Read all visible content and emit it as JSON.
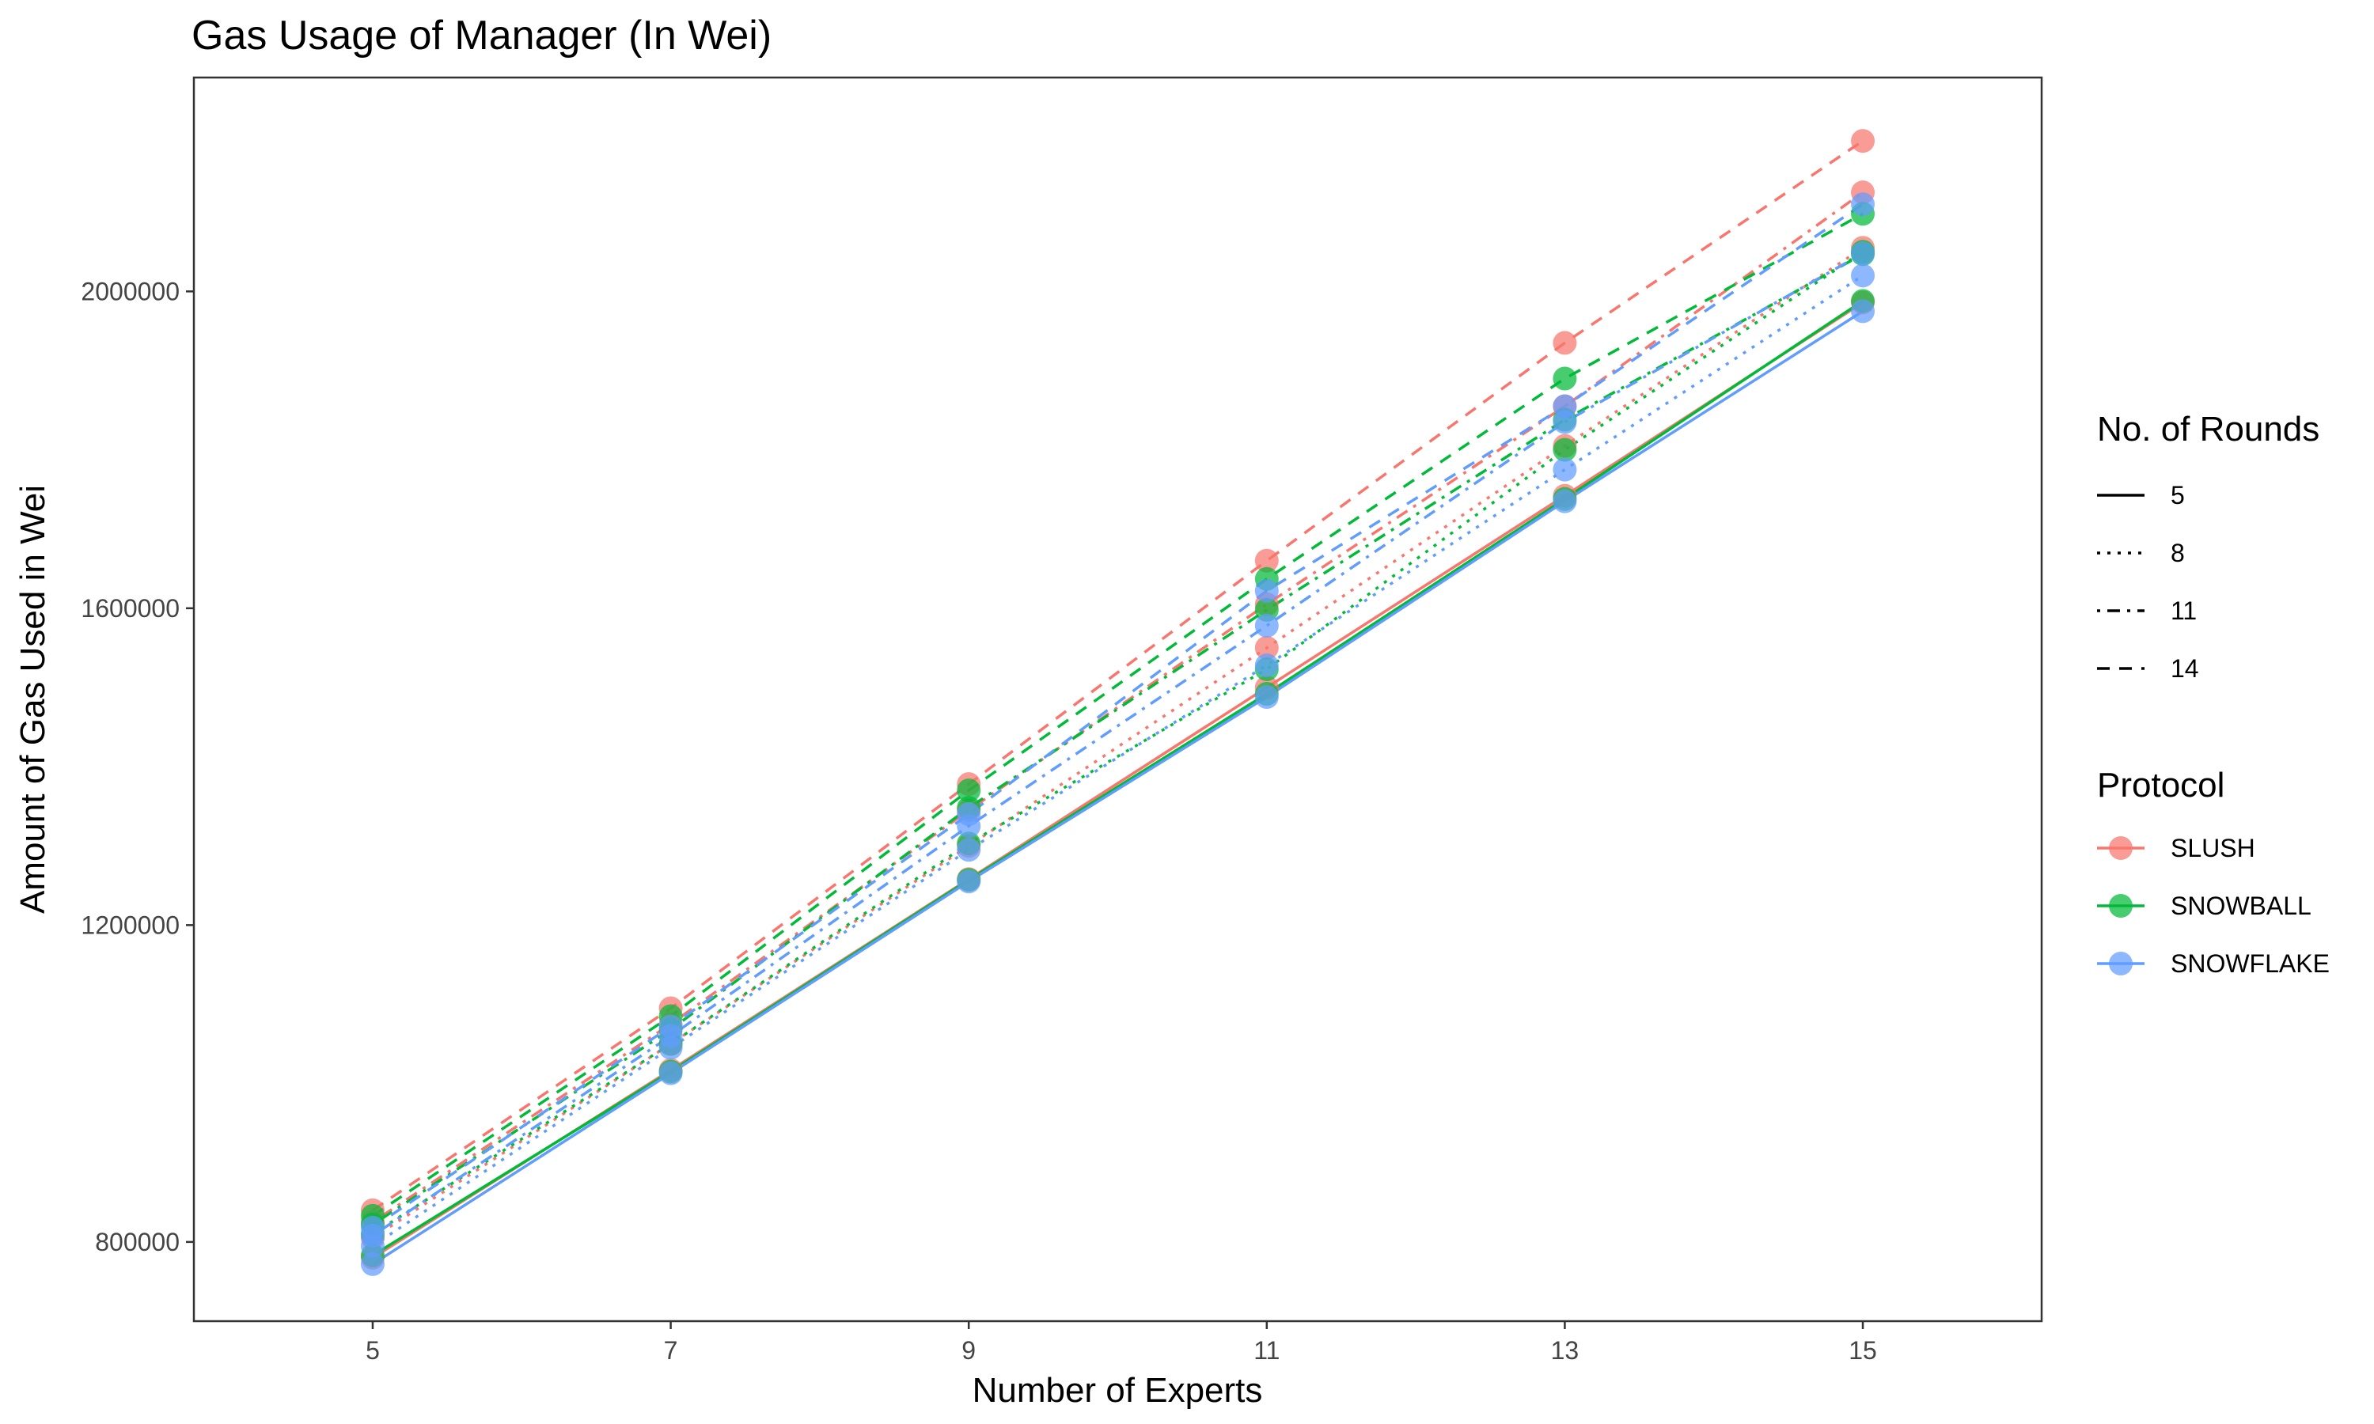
{
  "chart_data": {
    "type": "line",
    "title": "Gas Usage of Manager (In Wei)",
    "xlabel": "Number of Experts",
    "ylabel": "Amount of Gas Used in Wei",
    "x": [
      5,
      7,
      9,
      11,
      13,
      15
    ],
    "x_ticks": [
      "5",
      "7",
      "9",
      "11",
      "13",
      "15"
    ],
    "xlim": [
      3.8,
      16.2
    ],
    "y_ticks": [
      "800000",
      "1200000",
      "1600000",
      "2000000"
    ],
    "y_tick_values": [
      800000,
      1200000,
      1600000,
      2000000
    ],
    "ylim": [
      700000,
      2270000
    ],
    "grid": false,
    "legend_position": "right",
    "legends": {
      "rounds": {
        "title": "No. of Rounds",
        "entries": [
          {
            "label": "5",
            "dash": "solid"
          },
          {
            "label": "8",
            "dash": "dotted"
          },
          {
            "label": "11",
            "dash": "dotdash"
          },
          {
            "label": "14",
            "dash": "dashed"
          }
        ]
      },
      "protocol": {
        "title": "Protocol",
        "entries": [
          {
            "label": "SLUSH",
            "color": "#F8766D"
          },
          {
            "label": "SNOWBALL",
            "color": "#00BA38"
          },
          {
            "label": "SNOWFLAKE",
            "color": "#619CFF"
          }
        ]
      }
    },
    "series": [
      {
        "protocol": "SLUSH",
        "rounds": "5",
        "values": [
          780000,
          1017000,
          1258000,
          1500000,
          1742000,
          1986000
        ]
      },
      {
        "protocol": "SLUSH",
        "rounds": "8",
        "values": [
          805000,
          1050000,
          1300000,
          1550000,
          1805000,
          2055000
        ]
      },
      {
        "protocol": "SLUSH",
        "rounds": "11",
        "values": [
          825000,
          1075000,
          1345000,
          1605000,
          1855000,
          2125000
        ]
      },
      {
        "protocol": "SLUSH",
        "rounds": "14",
        "values": [
          840000,
          1095000,
          1378000,
          1660000,
          1935000,
          2190000
        ]
      },
      {
        "protocol": "SNOWBALL",
        "rounds": "5",
        "values": [
          783000,
          1015000,
          1257000,
          1492000,
          1738000,
          1988000
        ]
      },
      {
        "protocol": "SNOWBALL",
        "rounds": "8",
        "values": [
          810000,
          1050000,
          1303000,
          1523000,
          1800000,
          2050000
        ]
      },
      {
        "protocol": "SNOWBALL",
        "rounds": "11",
        "values": [
          822000,
          1068000,
          1348000,
          1598000,
          1838000,
          2047000
        ]
      },
      {
        "protocol": "SNOWBALL",
        "rounds": "14",
        "values": [
          833000,
          1085000,
          1370000,
          1637000,
          1890000,
          2098000
        ]
      },
      {
        "protocol": "SNOWFLAKE",
        "rounds": "5",
        "values": [
          772000,
          1013000,
          1255000,
          1488000,
          1735000,
          1975000
        ]
      },
      {
        "protocol": "SNOWFLAKE",
        "rounds": "8",
        "values": [
          795000,
          1045000,
          1295000,
          1528000,
          1775000,
          2020000
        ]
      },
      {
        "protocol": "SNOWFLAKE",
        "rounds": "11",
        "values": [
          808000,
          1060000,
          1325000,
          1578000,
          1835000,
          2048000
        ]
      },
      {
        "protocol": "SNOWFLAKE",
        "rounds": "14",
        "values": [
          818000,
          1072000,
          1340000,
          1622000,
          1855000,
          2110000
        ]
      }
    ]
  }
}
